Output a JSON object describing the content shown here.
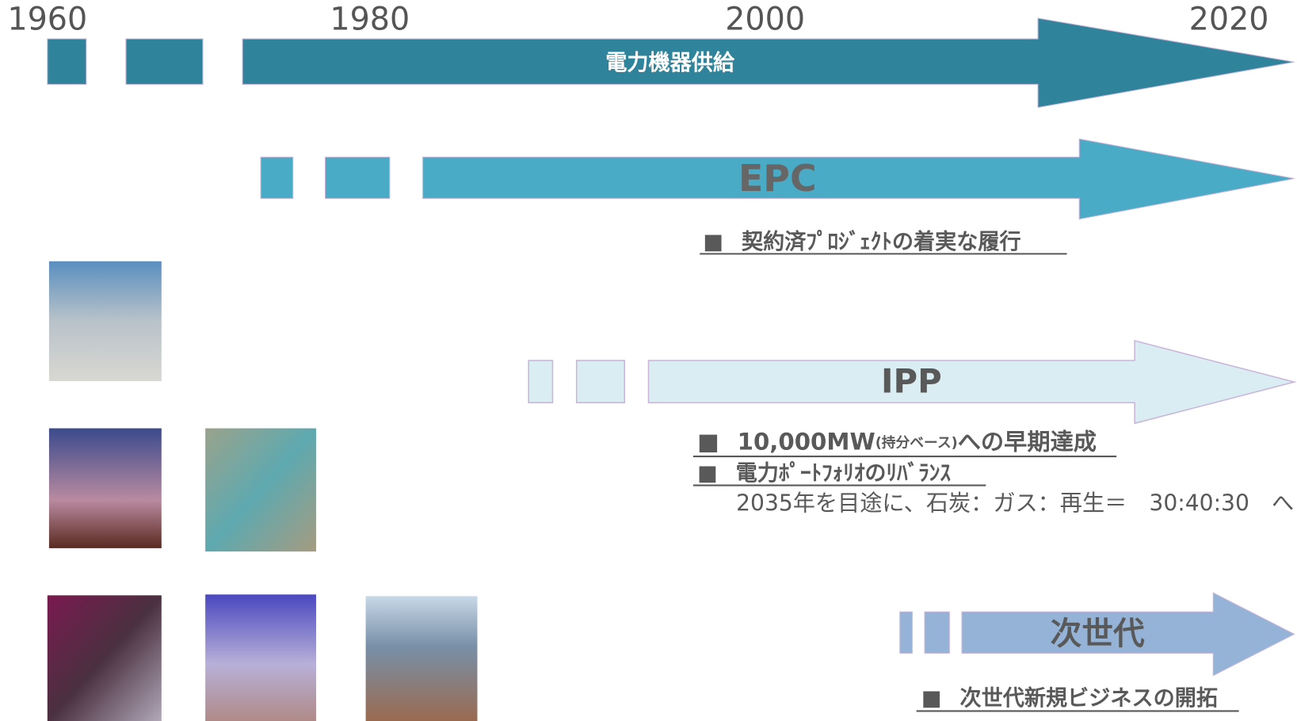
{
  "years": [
    "1960",
    "1980",
    "2000",
    "2020"
  ],
  "tracks": [
    {
      "label": "電力機器供給"
    },
    {
      "label": "EPC",
      "notes": [
        {
          "bullet": "■",
          "text": "契約済ﾌﾟﾛｼﾞｪｸﾄの着実な履行"
        }
      ]
    },
    {
      "label": "IPP",
      "notes": [
        {
          "bullet": "■",
          "text": "10,000MW",
          "small": "(持分ベース)",
          "rest": "への早期達成"
        },
        {
          "bullet": "■",
          "text": "電力ﾎﾟｰﾄﾌｫﾘｵのﾘﾊﾞﾗﾝｽ"
        }
      ],
      "detail": "2035年を目途に、石炭：ガス：再生＝　30:40:30　へ"
    },
    {
      "label": "次世代",
      "notes": [
        {
          "bullet": "■",
          "text": "次世代新規ビジネスの開拓"
        }
      ]
    }
  ]
}
